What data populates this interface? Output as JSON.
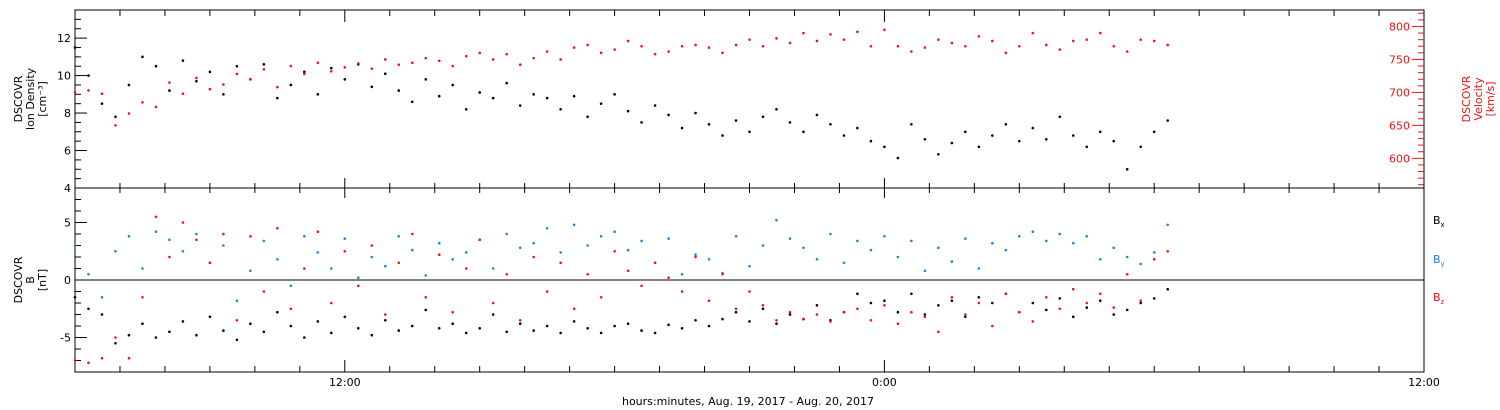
{
  "chart_data": [
    {
      "type": "scatter",
      "panel": "top",
      "x_range_hours": [
        6,
        36
      ],
      "ylabel_lines": [
        "DSCOVR",
        "Ion Density",
        "[cm⁻³]"
      ],
      "ylim": [
        4,
        13.5
      ],
      "yticks": [
        4,
        6,
        8,
        10,
        12
      ],
      "y2label_lines": [
        "DSCOVR",
        "Velocity",
        "[km/s]"
      ],
      "y2lim": [
        555,
        825
      ],
      "y2ticks": [
        600,
        650,
        700,
        750,
        800
      ],
      "series": [
        {
          "name": "",
          "axis": "left",
          "color": "#000000",
          "x": [
            6.0,
            6.3,
            6.6,
            6.9,
            7.2,
            7.5,
            7.8,
            8.1,
            8.4,
            8.7,
            9.0,
            9.3,
            9.6,
            9.9,
            10.2,
            10.5,
            10.8,
            11.1,
            11.4,
            11.7,
            12.0,
            12.3,
            12.6,
            12.9,
            13.2,
            13.5,
            13.8,
            14.1,
            14.4,
            14.7,
            15.0,
            15.3,
            15.6,
            15.9,
            16.2,
            16.5,
            16.8,
            17.1,
            17.4,
            17.7,
            18.0,
            18.3,
            18.6,
            18.9,
            19.2,
            19.5,
            19.8,
            20.1,
            20.4,
            20.7,
            21.0,
            21.3,
            21.6,
            21.9,
            22.2,
            22.5,
            22.8,
            23.1,
            23.4,
            23.7,
            24.0,
            24.3,
            24.6,
            24.9,
            25.2,
            25.5,
            25.8,
            26.1,
            26.4,
            26.7,
            27.0,
            27.3,
            27.6,
            27.9,
            28.2,
            28.5,
            28.8,
            29.1,
            29.4,
            29.7,
            30.0,
            30.3
          ],
          "y": [
            11.5,
            10.0,
            8.5,
            7.8,
            9.5,
            11.0,
            10.5,
            9.2,
            10.8,
            9.7,
            10.2,
            9.0,
            10.5,
            9.8,
            10.6,
            8.8,
            9.5,
            10.2,
            9.0,
            10.4,
            9.8,
            10.6,
            9.4,
            10.1,
            9.2,
            8.6,
            9.8,
            8.9,
            9.5,
            8.2,
            9.1,
            8.8,
            9.6,
            8.4,
            9.0,
            8.8,
            8.2,
            8.9,
            7.8,
            8.5,
            9.0,
            8.1,
            7.5,
            8.4,
            7.9,
            7.2,
            8.0,
            7.4,
            6.8,
            7.6,
            7.0,
            7.8,
            8.2,
            7.5,
            7.0,
            7.9,
            7.4,
            6.8,
            7.2,
            6.5,
            6.2,
            5.6,
            7.4,
            6.6,
            5.8,
            6.4,
            7.0,
            6.2,
            6.8,
            7.4,
            6.5,
            7.2,
            6.6,
            7.8,
            6.8,
            6.2,
            7.0,
            6.5,
            5.0,
            6.2,
            7.0,
            7.6
          ]
        },
        {
          "name": "",
          "axis": "right",
          "color": "#e8161a",
          "x": [
            6.0,
            6.3,
            6.6,
            6.9,
            7.2,
            7.5,
            7.8,
            8.1,
            8.4,
            8.7,
            9.0,
            9.3,
            9.6,
            9.9,
            10.2,
            10.5,
            10.8,
            11.1,
            11.4,
            11.7,
            12.0,
            12.3,
            12.6,
            12.9,
            13.2,
            13.5,
            13.8,
            14.1,
            14.4,
            14.7,
            15.0,
            15.3,
            15.6,
            15.9,
            16.2,
            16.5,
            16.8,
            17.1,
            17.4,
            17.7,
            18.0,
            18.3,
            18.6,
            18.9,
            19.2,
            19.5,
            19.8,
            20.1,
            20.4,
            20.7,
            21.0,
            21.3,
            21.6,
            21.9,
            22.2,
            22.5,
            22.8,
            23.1,
            23.4,
            23.7,
            24.0,
            24.3,
            24.6,
            24.9,
            25.2,
            25.5,
            25.8,
            26.1,
            26.4,
            26.7,
            27.0,
            27.3,
            27.6,
            27.9,
            28.2,
            28.5,
            28.8,
            29.1,
            29.4,
            29.7,
            30.0,
            30.3
          ],
          "y": [
            700,
            703,
            698,
            650,
            668,
            685,
            678,
            715,
            698,
            722,
            705,
            712,
            728,
            720,
            735,
            708,
            740,
            728,
            745,
            732,
            738,
            744,
            736,
            750,
            742,
            745,
            752,
            748,
            740,
            755,
            760,
            750,
            758,
            742,
            752,
            762,
            750,
            768,
            772,
            760,
            765,
            778,
            770,
            758,
            762,
            770,
            772,
            768,
            760,
            772,
            780,
            770,
            782,
            775,
            790,
            778,
            788,
            780,
            792,
            770,
            795,
            770,
            762,
            768,
            780,
            775,
            770,
            785,
            778,
            760,
            770,
            790,
            772,
            765,
            778,
            780,
            790,
            770,
            762,
            780,
            778,
            772
          ]
        }
      ]
    },
    {
      "type": "scatter",
      "panel": "bottom",
      "x_range_hours": [
        6,
        36
      ],
      "xticks_hours": [
        12,
        24,
        36
      ],
      "xtick_labels": [
        "12:00",
        "0:00",
        "12:00"
      ],
      "xlabel": "hours:minutes, Aug. 19, 2017 - Aug. 20, 2017",
      "ylabel_lines": [
        "DSCOVR",
        "B",
        "[nT]"
      ],
      "ylim": [
        -8,
        8
      ],
      "yticks": [
        -5,
        0,
        5
      ],
      "zero_line": true,
      "series": [
        {
          "name": "Bx",
          "color": "#000000",
          "x": [
            6.0,
            6.3,
            6.6,
            6.9,
            7.2,
            7.5,
            7.8,
            8.1,
            8.4,
            8.7,
            9.0,
            9.3,
            9.6,
            9.9,
            10.2,
            10.5,
            10.8,
            11.1,
            11.4,
            11.7,
            12.0,
            12.3,
            12.6,
            12.9,
            13.2,
            13.5,
            13.8,
            14.1,
            14.4,
            14.7,
            15.0,
            15.3,
            15.6,
            15.9,
            16.2,
            16.5,
            16.8,
            17.1,
            17.4,
            17.7,
            18.0,
            18.3,
            18.6,
            18.9,
            19.2,
            19.5,
            19.8,
            20.1,
            20.4,
            20.7,
            21.0,
            21.3,
            21.6,
            21.9,
            22.2,
            22.5,
            22.8,
            23.1,
            23.4,
            23.7,
            24.0,
            24.3,
            24.6,
            24.9,
            25.2,
            25.5,
            25.8,
            26.1,
            26.4,
            26.7,
            27.0,
            27.3,
            27.6,
            27.9,
            28.2,
            28.5,
            28.8,
            29.1,
            29.4,
            29.7,
            30.0,
            30.3
          ],
          "y": [
            -1.5,
            -2.5,
            -3.0,
            -5.5,
            -4.8,
            -3.8,
            -5.0,
            -4.5,
            -3.6,
            -4.8,
            -3.2,
            -4.4,
            -5.2,
            -3.8,
            -4.5,
            -2.8,
            -4.0,
            -5.0,
            -3.6,
            -4.6,
            -3.2,
            -4.2,
            -4.8,
            -3.5,
            -4.4,
            -4.0,
            -2.6,
            -4.2,
            -3.8,
            -4.6,
            -4.2,
            -3.0,
            -4.5,
            -3.8,
            -4.4,
            -4.0,
            -4.6,
            -3.6,
            -4.2,
            -4.6,
            -4.0,
            -3.8,
            -4.4,
            -4.6,
            -3.9,
            -4.2,
            -3.5,
            -4.0,
            -3.4,
            -2.8,
            -3.6,
            -2.5,
            -3.8,
            -3.0,
            -3.4,
            -2.2,
            -3.5,
            -2.8,
            -1.2,
            -2.0,
            -1.8,
            -2.8,
            -1.2,
            -3.0,
            -2.2,
            -1.8,
            -3.2,
            -1.5,
            -2.0,
            -1.2,
            -2.8,
            -2.0,
            -2.6,
            -1.6,
            -3.2,
            -2.4,
            -1.8,
            -3.0,
            -2.6,
            -2.0,
            -1.6,
            -0.8
          ]
        },
        {
          "name": "By",
          "color": "#1f83d8",
          "x": [
            6.0,
            6.3,
            6.6,
            6.9,
            7.2,
            7.5,
            7.8,
            8.1,
            8.4,
            8.7,
            9.0,
            9.3,
            9.6,
            9.9,
            10.2,
            10.5,
            10.8,
            11.1,
            11.4,
            11.7,
            12.0,
            12.3,
            12.6,
            12.9,
            13.2,
            13.5,
            13.8,
            14.1,
            14.4,
            14.7,
            15.0,
            15.3,
            15.6,
            15.9,
            16.2,
            16.5,
            16.8,
            17.1,
            17.4,
            17.7,
            18.0,
            18.3,
            18.6,
            18.9,
            19.2,
            19.5,
            19.8,
            20.1,
            20.4,
            20.7,
            21.0,
            21.3,
            21.6,
            21.9,
            22.2,
            22.5,
            22.8,
            23.1,
            23.4,
            23.7,
            24.0,
            24.3,
            24.6,
            24.9,
            25.2,
            25.5,
            25.8,
            26.1,
            26.4,
            26.7,
            27.0,
            27.3,
            27.6,
            27.9,
            28.2,
            28.5,
            28.8,
            29.1,
            29.4,
            29.7,
            30.0,
            30.3
          ],
          "y": [
            3.0,
            0.5,
            -1.5,
            2.5,
            3.8,
            1.0,
            4.2,
            3.5,
            2.5,
            4.0,
            1.5,
            3.0,
            -1.8,
            0.8,
            3.4,
            1.8,
            -0.5,
            3.8,
            2.4,
            1.0,
            3.6,
            0.2,
            2.0,
            1.2,
            3.8,
            2.6,
            0.4,
            3.2,
            1.8,
            2.4,
            3.5,
            1.0,
            4.0,
            2.8,
            3.2,
            4.5,
            2.4,
            4.8,
            3.0,
            3.8,
            4.2,
            2.6,
            3.4,
            1.5,
            3.6,
            0.5,
            2.2,
            1.8,
            0.6,
            3.8,
            1.2,
            3.0,
            5.2,
            3.6,
            2.8,
            1.8,
            4.0,
            1.5,
            3.4,
            2.6,
            3.8,
            2.0,
            3.4,
            0.8,
            2.8,
            1.6,
            3.6,
            1.0,
            3.2,
            2.6,
            3.8,
            4.2,
            3.4,
            4.0,
            3.2,
            3.8,
            1.8,
            2.8,
            2.0,
            1.4,
            2.4,
            4.8
          ]
        },
        {
          "name": "Bz",
          "color": "#e8161a",
          "x": [
            6.0,
            6.3,
            6.6,
            6.9,
            7.2,
            7.5,
            7.8,
            8.1,
            8.4,
            8.7,
            9.0,
            9.3,
            9.6,
            9.9,
            10.2,
            10.5,
            10.8,
            11.1,
            11.4,
            11.7,
            12.0,
            12.3,
            12.6,
            12.9,
            13.2,
            13.5,
            13.8,
            14.1,
            14.4,
            14.7,
            15.0,
            15.3,
            15.6,
            15.9,
            16.2,
            16.5,
            16.8,
            17.1,
            17.4,
            17.7,
            18.0,
            18.3,
            18.6,
            18.9,
            19.2,
            19.5,
            19.8,
            20.1,
            20.4,
            20.7,
            21.0,
            21.3,
            21.6,
            21.9,
            22.2,
            22.5,
            22.8,
            23.1,
            23.4,
            23.7,
            24.0,
            24.3,
            24.6,
            24.9,
            25.2,
            25.5,
            25.8,
            26.1,
            26.4,
            26.7,
            27.0,
            27.3,
            27.6,
            27.9,
            28.2,
            28.5,
            28.8,
            29.1,
            29.4,
            29.7,
            30.0,
            30.3
          ],
          "y": [
            -7.0,
            -7.2,
            -6.8,
            -5.0,
            -6.8,
            -1.5,
            5.5,
            2.0,
            5.0,
            3.5,
            1.5,
            4.0,
            -3.5,
            3.8,
            -1.0,
            4.5,
            -2.5,
            1.0,
            4.2,
            -2.0,
            2.5,
            -0.5,
            3.0,
            -3.0,
            1.5,
            4.0,
            -1.5,
            2.2,
            -2.8,
            1.0,
            3.5,
            -2.0,
            0.5,
            -3.5,
            2.0,
            -1.0,
            1.5,
            -2.5,
            0.5,
            -1.5,
            2.5,
            0.8,
            -0.5,
            1.5,
            0.2,
            -1.0,
            2.0,
            -1.8,
            0.5,
            -2.5,
            -1.0,
            -2.2,
            -3.5,
            -2.8,
            -3.4,
            -3.0,
            -3.6,
            -2.8,
            -2.5,
            -3.5,
            -2.2,
            -3.8,
            -2.8,
            -3.2,
            -4.5,
            -1.5,
            -3.0,
            -2.0,
            -4.0,
            -1.2,
            -2.8,
            -3.6,
            -1.5,
            -2.5,
            -0.8,
            -2.0,
            -1.2,
            -2.4,
            0.5,
            -1.8,
            1.8,
            2.5
          ]
        }
      ]
    }
  ],
  "legend": {
    "bx_main": "B",
    "bx_sub": "x",
    "by_main": "B",
    "by_sub": "y",
    "bz_main": "B",
    "bz_sub": "z"
  }
}
